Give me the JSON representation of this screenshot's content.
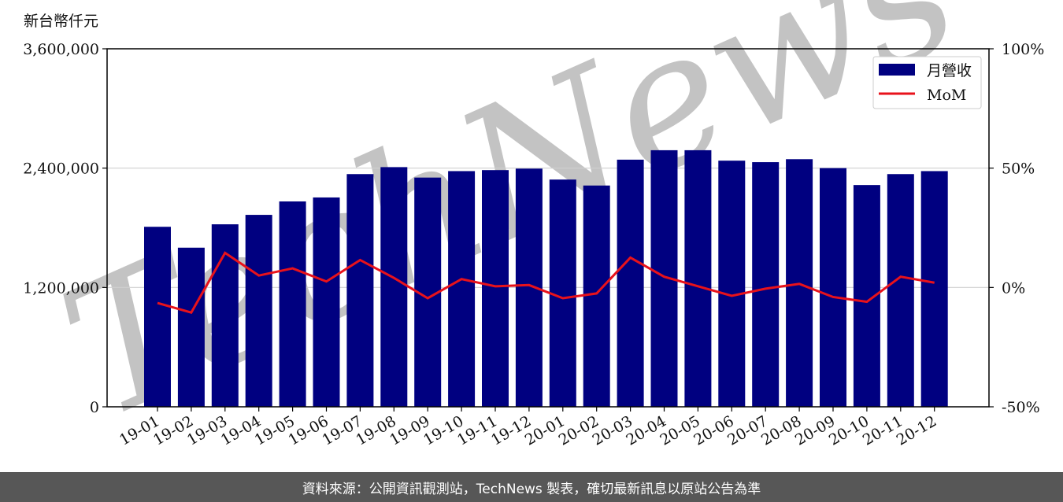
{
  "chart_data": {
    "type": "bar",
    "unit_label": "新台幣仟元",
    "categories": [
      "19-01",
      "19-02",
      "19-03",
      "19-04",
      "19-05",
      "19-06",
      "19-07",
      "19-08",
      "19-09",
      "19-10",
      "19-11",
      "19-12",
      "20-01",
      "20-02",
      "20-03",
      "20-04",
      "20-05",
      "20-06",
      "20-07",
      "20-08",
      "20-09",
      "20-10",
      "20-11",
      "20-12"
    ],
    "series": [
      {
        "name": "月營收",
        "type": "bar",
        "axis": "left",
        "color": "#000080",
        "values": [
          1810000,
          1600000,
          1835000,
          1930000,
          2065000,
          2105000,
          2340000,
          2410000,
          2305000,
          2370000,
          2380000,
          2395000,
          2285000,
          2225000,
          2485000,
          2580000,
          2580000,
          2475000,
          2460000,
          2490000,
          2400000,
          2230000,
          2340000,
          2370000
        ]
      },
      {
        "name": "MoM",
        "type": "line",
        "axis": "right",
        "color": "#e8121b",
        "values": [
          -6.5,
          -10.5,
          14.5,
          5,
          8,
          2.5,
          11.5,
          4,
          -4.5,
          3.5,
          0.5,
          1,
          -4.5,
          -2.5,
          12.5,
          4.5,
          0.5,
          -3.5,
          -0.5,
          1.5,
          -4,
          -6,
          4.5,
          2
        ]
      }
    ],
    "y_left": {
      "min": 0,
      "max": 3600000,
      "ticks": [
        "0",
        "1,200,000",
        "2,400,000",
        "3,600,000"
      ]
    },
    "y_right": {
      "min": -50,
      "max": 100,
      "ticks": [
        "-50%",
        "0%",
        "50%",
        "100%"
      ]
    },
    "grid": "horizontal",
    "legend": {
      "position": "top-right",
      "entries": [
        "月營收",
        "MoM"
      ]
    }
  },
  "watermark": "TechNews",
  "footer": {
    "source_text": "資料來源：公開資訊觀測站，TechNews 製表，確切最新訊息以原站公告為準"
  }
}
